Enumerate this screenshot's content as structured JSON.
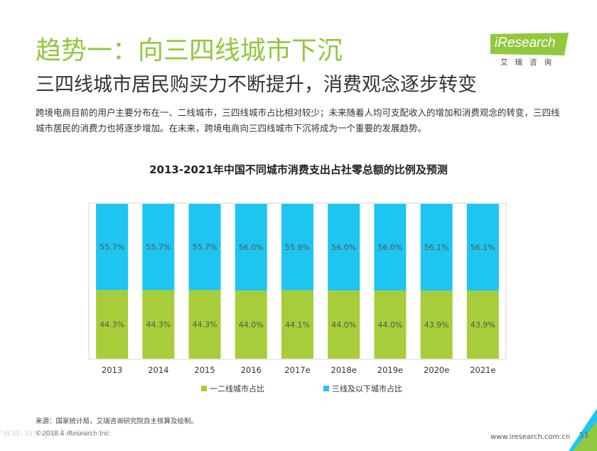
{
  "header": {
    "title": "趋势一：向三四线城市下沉",
    "subtitle": "三四线城市居民购买力不断提升，消费观念逐步转变",
    "description": "跨境电商目前的用户主要分布在一、二线城市，三四线城市占比相对较少；未来随着人均可支配收入的增加和消费观念的转变，三四线城市居民的消费力也将逐步增加。在未来，跨境电商向三四线城市下沉将成为一个重要的发展趋势。"
  },
  "logo": {
    "word": "iResearch",
    "sub": "艾瑞咨询"
  },
  "colors": {
    "accent": "#92c83e",
    "series1": "#a8cd3a",
    "series2": "#1ec5f0"
  },
  "chart_data": {
    "type": "bar",
    "stacked": true,
    "title": "2013-2021年中国不同城市消费支出占社零总额的比例及预测",
    "categories": [
      "2013",
      "2014",
      "2015",
      "2016",
      "2017e",
      "2018e",
      "2019e",
      "2020e",
      "2021e"
    ],
    "series": [
      {
        "name": "一二线城市占比",
        "values": [
          44.3,
          44.3,
          44.3,
          44.0,
          44.1,
          44.0,
          44.0,
          43.9,
          43.9
        ],
        "labels": [
          "44.3%",
          "44.3%",
          "44.3%",
          "44.0%",
          "44.1%",
          "44.0%",
          "44.0%",
          "43.9%",
          "43.9%"
        ]
      },
      {
        "name": "三线及以下城市占比",
        "values": [
          55.7,
          55.7,
          55.7,
          56.0,
          55.9,
          56.0,
          56.0,
          56.1,
          56.1
        ],
        "labels": [
          "55.7%",
          "55.7%",
          "55.7%",
          "56.0%",
          "55.9%",
          "56.0%",
          "56.0%",
          "56.1%",
          "56.1%"
        ]
      }
    ],
    "ylim": [
      0,
      100
    ],
    "grid": false,
    "legend_position": "bottom"
  },
  "footer": {
    "source": "来源：国家统计局，艾瑞咨询研究院自主核算及绘制。",
    "copyright": "©2018.4 iResearch Inc",
    "url": "www.iresearch.com.cn",
    "page": "51",
    "watermark": "www.ws-ppt.com.cn"
  }
}
